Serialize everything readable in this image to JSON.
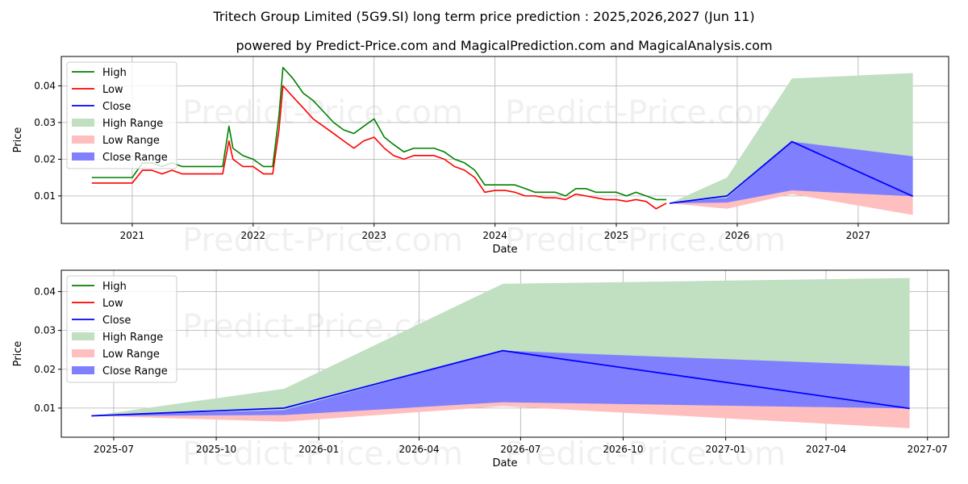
{
  "page": {
    "title": "Tritech Group Limited (5G9.SI) long term price prediction : 2025,2026,2027 (Jun 11)",
    "subtitle": "powered by Predict-Price.com and MagicalPrediction.com and MagicalAnalysis.com",
    "watermark": "Predict-Price.com"
  },
  "colors": {
    "high": "#008000",
    "low": "#ff0000",
    "close": "#0000ff",
    "high_range": "#c1dfc1",
    "low_range": "#ffbfbf",
    "close_range": "#8080ff"
  },
  "legend": {
    "high": "High",
    "low": "Low",
    "close": "Close",
    "high_range": "High Range",
    "low_range": "Low Range",
    "close_range": "Close Range"
  },
  "chart_data": [
    {
      "type": "line",
      "panel": "top",
      "xlabel": "Date",
      "ylabel": "Price",
      "xlim": [
        "2020-06-01",
        "2027-10-01"
      ],
      "ylim": [
        0.0025,
        0.048
      ],
      "xticks": [
        {
          "date": "2021-01-01",
          "label": "2021"
        },
        {
          "date": "2022-01-01",
          "label": "2022"
        },
        {
          "date": "2023-01-01",
          "label": "2023"
        },
        {
          "date": "2024-01-01",
          "label": "2024"
        },
        {
          "date": "2025-01-01",
          "label": "2025"
        },
        {
          "date": "2026-01-01",
          "label": "2026"
        },
        {
          "date": "2027-01-01",
          "label": "2027"
        }
      ],
      "yticks": [
        0.01,
        0.02,
        0.03,
        0.04
      ],
      "grid": true,
      "legend_position": "upper-left",
      "history": {
        "dates": [
          "2020-09-01",
          "2020-10-01",
          "2020-11-01",
          "2020-12-01",
          "2021-01-01",
          "2021-02-01",
          "2021-03-01",
          "2021-04-01",
          "2021-05-01",
          "2021-06-01",
          "2021-07-01",
          "2021-08-01",
          "2021-09-01",
          "2021-10-01",
          "2021-10-20",
          "2021-11-01",
          "2021-12-01",
          "2022-01-01",
          "2022-02-01",
          "2022-03-01",
          "2022-03-20",
          "2022-04-01",
          "2022-05-01",
          "2022-06-01",
          "2022-07-01",
          "2022-08-01",
          "2022-09-01",
          "2022-10-01",
          "2022-11-01",
          "2022-12-01",
          "2023-01-01",
          "2023-02-01",
          "2023-03-01",
          "2023-04-01",
          "2023-05-01",
          "2023-06-01",
          "2023-07-01",
          "2023-08-01",
          "2023-09-01",
          "2023-10-01",
          "2023-11-01",
          "2023-12-01",
          "2024-01-01",
          "2024-02-01",
          "2024-03-01",
          "2024-04-01",
          "2024-05-01",
          "2024-06-01",
          "2024-07-01",
          "2024-08-01",
          "2024-09-01",
          "2024-10-01",
          "2024-11-01",
          "2024-12-01",
          "2025-01-01",
          "2025-02-01",
          "2025-03-01",
          "2025-04-01",
          "2025-05-01",
          "2025-06-01"
        ],
        "high": [
          0.015,
          0.015,
          0.015,
          0.015,
          0.015,
          0.019,
          0.019,
          0.018,
          0.019,
          0.018,
          0.018,
          0.018,
          0.018,
          0.018,
          0.029,
          0.023,
          0.021,
          0.02,
          0.018,
          0.018,
          0.032,
          0.045,
          0.042,
          0.038,
          0.036,
          0.033,
          0.03,
          0.028,
          0.027,
          0.029,
          0.031,
          0.026,
          0.024,
          0.022,
          0.023,
          0.023,
          0.023,
          0.022,
          0.02,
          0.019,
          0.017,
          0.013,
          0.013,
          0.013,
          0.013,
          0.012,
          0.011,
          0.011,
          0.011,
          0.01,
          0.012,
          0.012,
          0.011,
          0.011,
          0.011,
          0.01,
          0.011,
          0.01,
          0.009,
          0.009
        ],
        "low": [
          0.0135,
          0.0135,
          0.0135,
          0.0135,
          0.0135,
          0.017,
          0.017,
          0.016,
          0.017,
          0.016,
          0.016,
          0.016,
          0.016,
          0.016,
          0.025,
          0.02,
          0.018,
          0.018,
          0.016,
          0.016,
          0.028,
          0.04,
          0.037,
          0.034,
          0.031,
          0.029,
          0.027,
          0.025,
          0.023,
          0.025,
          0.026,
          0.023,
          0.021,
          0.02,
          0.021,
          0.021,
          0.021,
          0.02,
          0.018,
          0.017,
          0.015,
          0.011,
          0.0115,
          0.0115,
          0.011,
          0.01,
          0.01,
          0.0095,
          0.0095,
          0.009,
          0.0105,
          0.01,
          0.0095,
          0.009,
          0.009,
          0.0085,
          0.009,
          0.0085,
          0.0065,
          0.008
        ]
      },
      "forecast": {
        "dates": [
          "2025-06-11",
          "2025-12-01",
          "2026-06-15",
          "2027-06-15"
        ],
        "close": [
          0.008,
          0.01,
          0.0248,
          0.0099
        ],
        "high_range": {
          "upper": [
            0.008,
            0.015,
            0.042,
            0.0435
          ],
          "lower": [
            0.008,
            0.0095,
            0.023,
            0.0205
          ]
        },
        "low_range": {
          "upper": [
            0.008,
            0.009,
            0.013,
            0.01
          ],
          "lower": [
            0.008,
            0.0065,
            0.0105,
            0.0048
          ]
        },
        "close_range": {
          "upper": [
            0.008,
            0.0095,
            0.0248,
            0.0208
          ],
          "lower": [
            0.008,
            0.0082,
            0.0115,
            0.0099
          ]
        }
      }
    },
    {
      "type": "line",
      "panel": "bottom",
      "xlabel": "Date",
      "ylabel": "Price",
      "xlim": [
        "2025-05-15",
        "2027-07-20"
      ],
      "ylim": [
        0.0025,
        0.0455
      ],
      "xticks": [
        {
          "date": "2025-07-01",
          "label": "2025-07"
        },
        {
          "date": "2025-10-01",
          "label": "2025-10"
        },
        {
          "date": "2026-01-01",
          "label": "2026-01"
        },
        {
          "date": "2026-04-01",
          "label": "2026-04"
        },
        {
          "date": "2026-07-01",
          "label": "2026-07"
        },
        {
          "date": "2026-10-01",
          "label": "2026-10"
        },
        {
          "date": "2027-01-01",
          "label": "2027-01"
        },
        {
          "date": "2027-04-01",
          "label": "2027-04"
        },
        {
          "date": "2027-07-01",
          "label": "2027-07"
        }
      ],
      "yticks": [
        0.01,
        0.02,
        0.03,
        0.04
      ],
      "grid": true,
      "legend_position": "upper-left"
    }
  ]
}
